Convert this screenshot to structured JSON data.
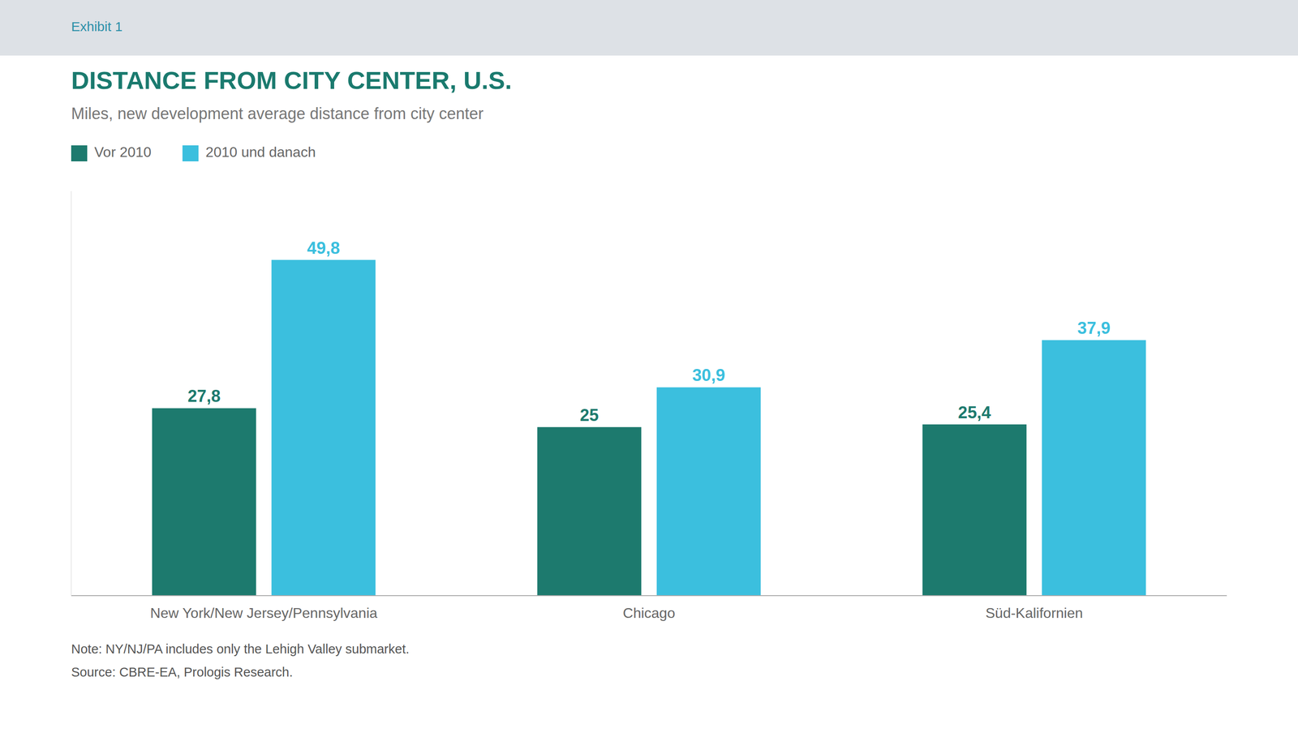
{
  "chart_data": {
    "type": "bar",
    "title": "DISTANCE FROM CITY CENTER, U.S.",
    "subtitle": "Miles, new development average distance from city center",
    "annotations": [
      "Exhibit 1",
      "Note: NY/NJ/PA includes only the Lehigh Valley submarket.",
      "Source: CBRE-EA, Prologis Research."
    ],
    "categories": [
      "New York/New Jersey/Pennsylvania",
      "Chicago",
      "Süd-Kalifornien"
    ],
    "series": [
      {
        "name": "Vor 2010",
        "color": "#1d7a6e",
        "values": [
          27.8,
          25.0,
          25.4
        ],
        "value_labels": [
          "27,8",
          "25",
          "25,4"
        ]
      },
      {
        "name": "2010 und danach",
        "color": "#3bbfde",
        "values": [
          49.8,
          30.9,
          37.9
        ],
        "value_labels": [
          "49,8",
          "30,9",
          "37,9"
        ]
      }
    ],
    "ylim": [
      0,
      60
    ],
    "data_labels": true,
    "tick_labels": "x",
    "grid": false,
    "legend": "top"
  }
}
